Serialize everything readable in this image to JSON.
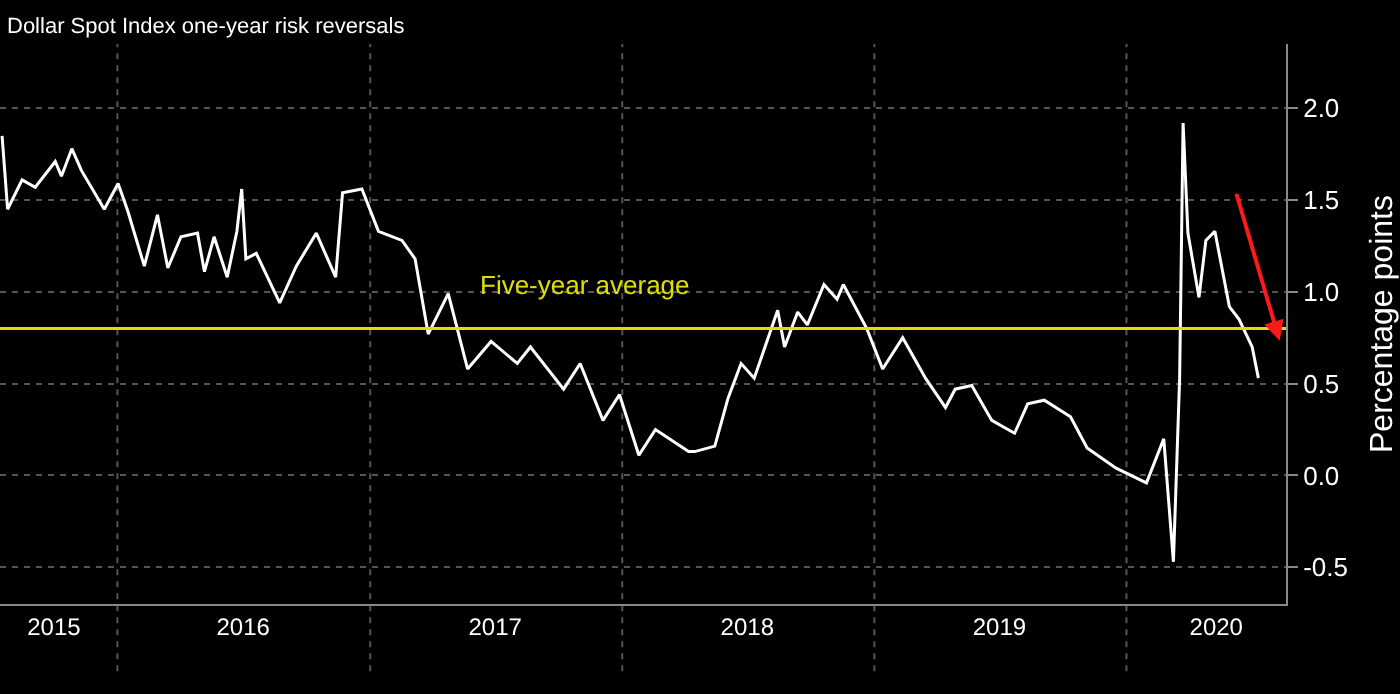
{
  "chart_data": {
    "type": "line",
    "title": "Dollar Spot Index one-year risk reversals",
    "ylabel": "Percentage points",
    "x": [
      "2015-07-18",
      "2015-07-26",
      "2015-08-16",
      "2015-09-04",
      "2015-10-03",
      "2015-10-12",
      "2015-10-27",
      "2015-11-10",
      "2015-12-13",
      "2016-01-02",
      "2016-01-16",
      "2016-02-09",
      "2016-02-28",
      "2016-03-14",
      "2016-04-02",
      "2016-04-26",
      "2016-05-06",
      "2016-05-20",
      "2016-06-08",
      "2016-06-22",
      "2016-06-29",
      "2016-07-05",
      "2016-07-20",
      "2016-08-23",
      "2016-09-16",
      "2016-10-15",
      "2016-11-12",
      "2016-11-22",
      "2016-12-20",
      "2017-01-13",
      "2017-02-16",
      "2017-03-07",
      "2017-03-26",
      "2017-04-24",
      "2017-05-22",
      "2017-06-25",
      "2017-08-02",
      "2017-08-21",
      "2017-10-08",
      "2017-11-01",
      "2017-12-04",
      "2017-12-28",
      "2018-01-25",
      "2018-02-18",
      "2018-04-07",
      "2018-04-16",
      "2018-05-15",
      "2018-06-03",
      "2018-06-22",
      "2018-07-11",
      "2018-08-14",
      "2018-08-24",
      "2018-09-12",
      "2018-09-26",
      "2018-10-20",
      "2018-11-08",
      "2018-11-17",
      "2018-12-21",
      "2019-01-13",
      "2019-02-11",
      "2019-03-16",
      "2019-04-14",
      "2019-04-28",
      "2019-05-22",
      "2019-06-20",
      "2019-07-23",
      "2019-08-11",
      "2019-09-04",
      "2019-10-12",
      "2019-11-05",
      "2019-12-17",
      "2020-01-30",
      "2020-02-24",
      "2020-03-09",
      "2020-03-18",
      "2020-03-23",
      "2020-03-30",
      "2020-04-15",
      "2020-04-25",
      "2020-05-08",
      "2020-05-29",
      "2020-06-12",
      "2020-07-01",
      "2020-07-10"
    ],
    "series": [
      {
        "color": "#ffffff",
        "values": [
          1.85,
          1.45,
          1.61,
          1.57,
          1.71,
          1.63,
          1.78,
          1.66,
          1.45,
          1.59,
          1.44,
          1.14,
          1.42,
          1.13,
          1.3,
          1.32,
          1.11,
          1.3,
          1.08,
          1.33,
          1.56,
          1.18,
          1.21,
          0.94,
          1.14,
          1.32,
          1.08,
          1.54,
          1.56,
          1.33,
          1.28,
          1.18,
          0.77,
          0.99,
          0.58,
          0.73,
          0.61,
          0.7,
          0.47,
          0.61,
          0.3,
          0.44,
          0.11,
          0.25,
          0.13,
          0.13,
          0.16,
          0.42,
          0.61,
          0.53,
          0.9,
          0.7,
          0.89,
          0.82,
          1.04,
          0.96,
          1.04,
          0.8,
          0.58,
          0.75,
          0.53,
          0.37,
          0.47,
          0.49,
          0.3,
          0.23,
          0.39,
          0.41,
          0.32,
          0.15,
          0.04,
          -0.04,
          0.2,
          -0.47,
          0.53,
          1.92,
          1.32,
          0.97,
          1.28,
          1.33,
          0.92,
          0.85,
          0.7,
          0.53
        ]
      }
    ],
    "xlim": [
      "2015-07-15",
      "2020-08-19"
    ],
    "xticks": [
      {
        "value": "2015-10-01",
        "label": "2015"
      },
      {
        "value": "2016-01-01",
        "label": null
      },
      {
        "value": "2016-07-01",
        "label": "2016"
      },
      {
        "value": "2017-01-01",
        "label": null
      },
      {
        "value": "2017-07-01",
        "label": "2017"
      },
      {
        "value": "2018-01-01",
        "label": null
      },
      {
        "value": "2018-07-01",
        "label": "2018"
      },
      {
        "value": "2019-01-01",
        "label": null
      },
      {
        "value": "2019-07-01",
        "label": "2019"
      },
      {
        "value": "2020-01-01",
        "label": null
      },
      {
        "value": "2020-05-10",
        "label": "2020"
      }
    ],
    "ylim": [
      -0.7,
      2.35
    ],
    "yticks": [
      -0.5,
      {
        "value": 0,
        "label": "0.0"
      },
      0.5,
      {
        "value": 1,
        "label": "1.0"
      },
      1.5,
      {
        "value": 2,
        "label": "2.0"
      }
    ],
    "grid": true,
    "line_style": "solid",
    "marker": "none",
    "ref_lines": [
      {
        "axis": "y",
        "value": 0.8,
        "label": "Five-year average",
        "color": "#e0e000"
      }
    ]
  }
}
